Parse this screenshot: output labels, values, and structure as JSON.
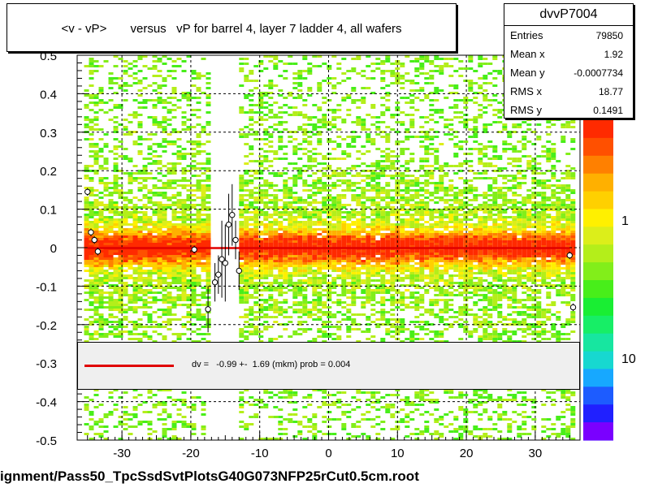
{
  "title": "<v - vP>       versus   vP for barrel 4, layer 7 ladder 4, all wafers",
  "stats": {
    "name": "dvvP7004",
    "rows": [
      {
        "label": "Entries",
        "value": "79850"
      },
      {
        "label": "Mean x",
        "value": "1.92"
      },
      {
        "label": "Mean y",
        "value": "-0.0007734"
      },
      {
        "label": "RMS x",
        "value": "18.77"
      },
      {
        "label": "RMS y",
        "value": "0.1491"
      }
    ]
  },
  "fit_legend": {
    "text": "dv =   -0.99 +-  1.69 (mkm) prob = 0.004"
  },
  "file_label": "ignment/Pass50_TpcSsdSvtPlotsG40G073NFP25rCut0.5cm.root",
  "colors": {
    "fit": "#e00000",
    "palette": [
      "#7a00ff",
      "#5a17ff",
      "#2020ff",
      "#1d5cff",
      "#17a8ff",
      "#17d8d0",
      "#17e6a0",
      "#17ee66",
      "#19ee33",
      "#48ee1a",
      "#82ee1a",
      "#b4ee1a",
      "#dcee1a",
      "#fff000",
      "#ffd000",
      "#ffb000",
      "#ff8000",
      "#ff5000",
      "#ff2a00"
    ]
  },
  "chart_data": {
    "type": "heatmap",
    "title": "<v - vP>       versus   vP for barrel 4, layer 7 ladder 4, all wafers",
    "xlim": [
      -36.5,
      36.5
    ],
    "ylim": [
      -0.5,
      0.5
    ],
    "x_ticks": [
      -30,
      -20,
      -10,
      0,
      10,
      20,
      30
    ],
    "y_ticks": [
      -0.5,
      -0.4,
      -0.3,
      -0.2,
      -0.1,
      0,
      0.1,
      0.2,
      0.3,
      0.4,
      0.5
    ],
    "x_tick_labels": [
      "-30",
      "-20",
      "-10",
      "0",
      "10",
      "20",
      "30"
    ],
    "y_tick_labels": [
      "-0.5",
      "-0.4",
      "-0.3",
      "-0.2",
      "-0.1",
      "0",
      "0.1",
      "0.2",
      "0.3",
      "0.4",
      "0.5"
    ],
    "grid": true,
    "colorbar": {
      "labels": [
        "1",
        "10"
      ],
      "scale": "log"
    },
    "density_regions": [
      {
        "x": [
          -35.5,
          -17.5
        ],
        "y": [
          -0.5,
          0.5
        ]
      },
      {
        "x": [
          -13,
          35.5
        ],
        "y": [
          -0.5,
          0.5
        ]
      }
    ],
    "gap": {
      "x": [
        -17.5,
        -13
      ]
    },
    "fit_line": {
      "slope": 0,
      "intercept": -0.00099,
      "x": [
        -35,
        35
      ]
    },
    "profile_points": {
      "x": [
        -35,
        -34.5,
        -34,
        -33.5,
        -19.5,
        -17.5,
        -16.5,
        -16,
        -15.5,
        -15,
        -14.5,
        -14,
        -13.5,
        -13,
        35,
        35.5
      ],
      "y": [
        0.145,
        0.04,
        0.02,
        -0.01,
        -0.005,
        -0.16,
        -0.09,
        -0.07,
        -0.03,
        -0.04,
        0.06,
        0.085,
        0.02,
        -0.06,
        -0.02,
        -0.155
      ],
      "err": [
        0.01,
        0.01,
        0.01,
        0.01,
        0.01,
        0.06,
        0.05,
        0.05,
        0.1,
        0.1,
        0.08,
        0.08,
        0.05,
        0.05,
        0.01,
        0.01
      ]
    }
  }
}
